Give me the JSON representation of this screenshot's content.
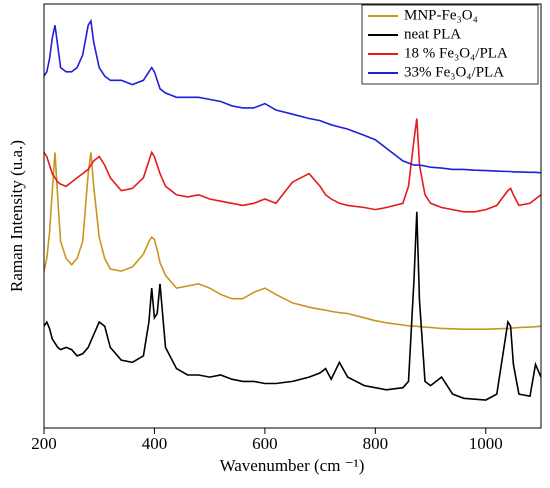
{
  "chart_data": {
    "type": "line",
    "xlabel": "Wavenumber (cm ⁻¹)",
    "ylabel": "Raman Intensity (u.a.)",
    "x": [
      200,
      205,
      210,
      215,
      220,
      225,
      230,
      240,
      250,
      260,
      270,
      280,
      285,
      290,
      300,
      310,
      320,
      340,
      360,
      380,
      390,
      395,
      400,
      405,
      410,
      420,
      440,
      460,
      480,
      500,
      520,
      540,
      560,
      580,
      600,
      620,
      650,
      680,
      700,
      710,
      720,
      735,
      750,
      780,
      800,
      820,
      850,
      860,
      870,
      875,
      880,
      890,
      900,
      920,
      940,
      960,
      980,
      1000,
      1020,
      1040,
      1045,
      1050,
      1060,
      1080,
      1090,
      1100
    ],
    "series": [
      {
        "name": "MNP-Fe₃O₄",
        "color": "#c8961e",
        "values": [
          37,
          40,
          46,
          56,
          65,
          54,
          44,
          40,
          38.5,
          40,
          44,
          60,
          65,
          57,
          45,
          40,
          37.5,
          37,
          38,
          41,
          44,
          45,
          44.5,
          42,
          39,
          36,
          33,
          33.5,
          34,
          33,
          31.5,
          30.5,
          30.5,
          32,
          33,
          31.5,
          29.5,
          28.5,
          28,
          27.8,
          27.5,
          27.2,
          27,
          26,
          25.3,
          24.8,
          24.3,
          24.1,
          24,
          24,
          23.9,
          23.8,
          23.7,
          23.5,
          23.4,
          23.3,
          23.3,
          23.3,
          23.4,
          23.5,
          23.5,
          23.6,
          23.7,
          23.8,
          23.9,
          24
        ]
      },
      {
        "name": "neat PLA",
        "color": "#000000",
        "values": [
          24,
          25,
          23.5,
          21,
          20,
          19,
          18.5,
          19,
          18.5,
          17,
          17.5,
          19,
          20.5,
          22,
          25,
          24,
          19,
          16,
          15.5,
          17,
          25,
          33,
          26,
          27,
          34,
          19,
          14,
          12.5,
          12.5,
          12,
          12.5,
          11.5,
          11,
          11,
          10.5,
          10.5,
          11,
          12,
          13,
          14,
          11.5,
          15.5,
          12,
          10,
          9.5,
          9,
          9.5,
          11,
          35,
          51,
          30,
          11,
          10,
          12,
          8,
          7,
          6.8,
          6.6,
          8,
          25,
          24,
          15,
          8,
          7.5,
          15,
          12
        ]
      },
      {
        "name": "18 % Fe₃O₄/PLA",
        "color": "#e41a1c",
        "values": [
          65,
          64,
          62,
          60,
          59,
          58,
          57.5,
          57,
          58,
          59,
          60,
          61,
          62,
          63,
          64,
          62,
          59,
          56,
          56.5,
          59,
          63,
          65,
          64,
          62,
          60,
          57,
          55,
          54.5,
          55,
          54,
          53.5,
          53,
          52.5,
          53,
          54,
          53,
          58,
          60,
          57,
          55,
          54,
          53,
          52.5,
          52,
          51.5,
          52,
          53,
          57,
          68,
          73,
          62,
          55,
          53,
          52,
          51.5,
          51,
          51,
          51.5,
          52.5,
          56,
          56.5,
          55,
          52.5,
          53,
          54,
          55
        ]
      },
      {
        "name": "33% Fe₃O₄/PLA",
        "color": "#1f1fdc",
        "values": [
          83,
          84,
          87,
          92,
          95,
          90,
          85,
          84,
          84,
          85,
          88,
          95,
          96,
          91,
          85,
          83,
          82,
          82,
          81,
          82,
          84,
          85,
          84,
          82,
          80,
          79,
          78,
          78,
          78,
          77.5,
          77,
          76,
          75.5,
          75.5,
          76.5,
          75,
          74,
          73,
          72.5,
          72,
          71.5,
          71,
          70.5,
          69,
          68,
          66,
          63,
          62.5,
          62,
          62,
          62,
          61.8,
          61.5,
          61.3,
          61,
          61,
          60.8,
          60.7,
          60.6,
          60.5,
          60.5,
          60.4,
          60.4,
          60.3,
          60.3,
          60.2
        ]
      }
    ],
    "xlim": [
      200,
      1100
    ],
    "xticks": [
      200,
      400,
      600,
      800,
      1000
    ],
    "ylim": [
      0,
      100
    ],
    "legend": "upper right"
  }
}
